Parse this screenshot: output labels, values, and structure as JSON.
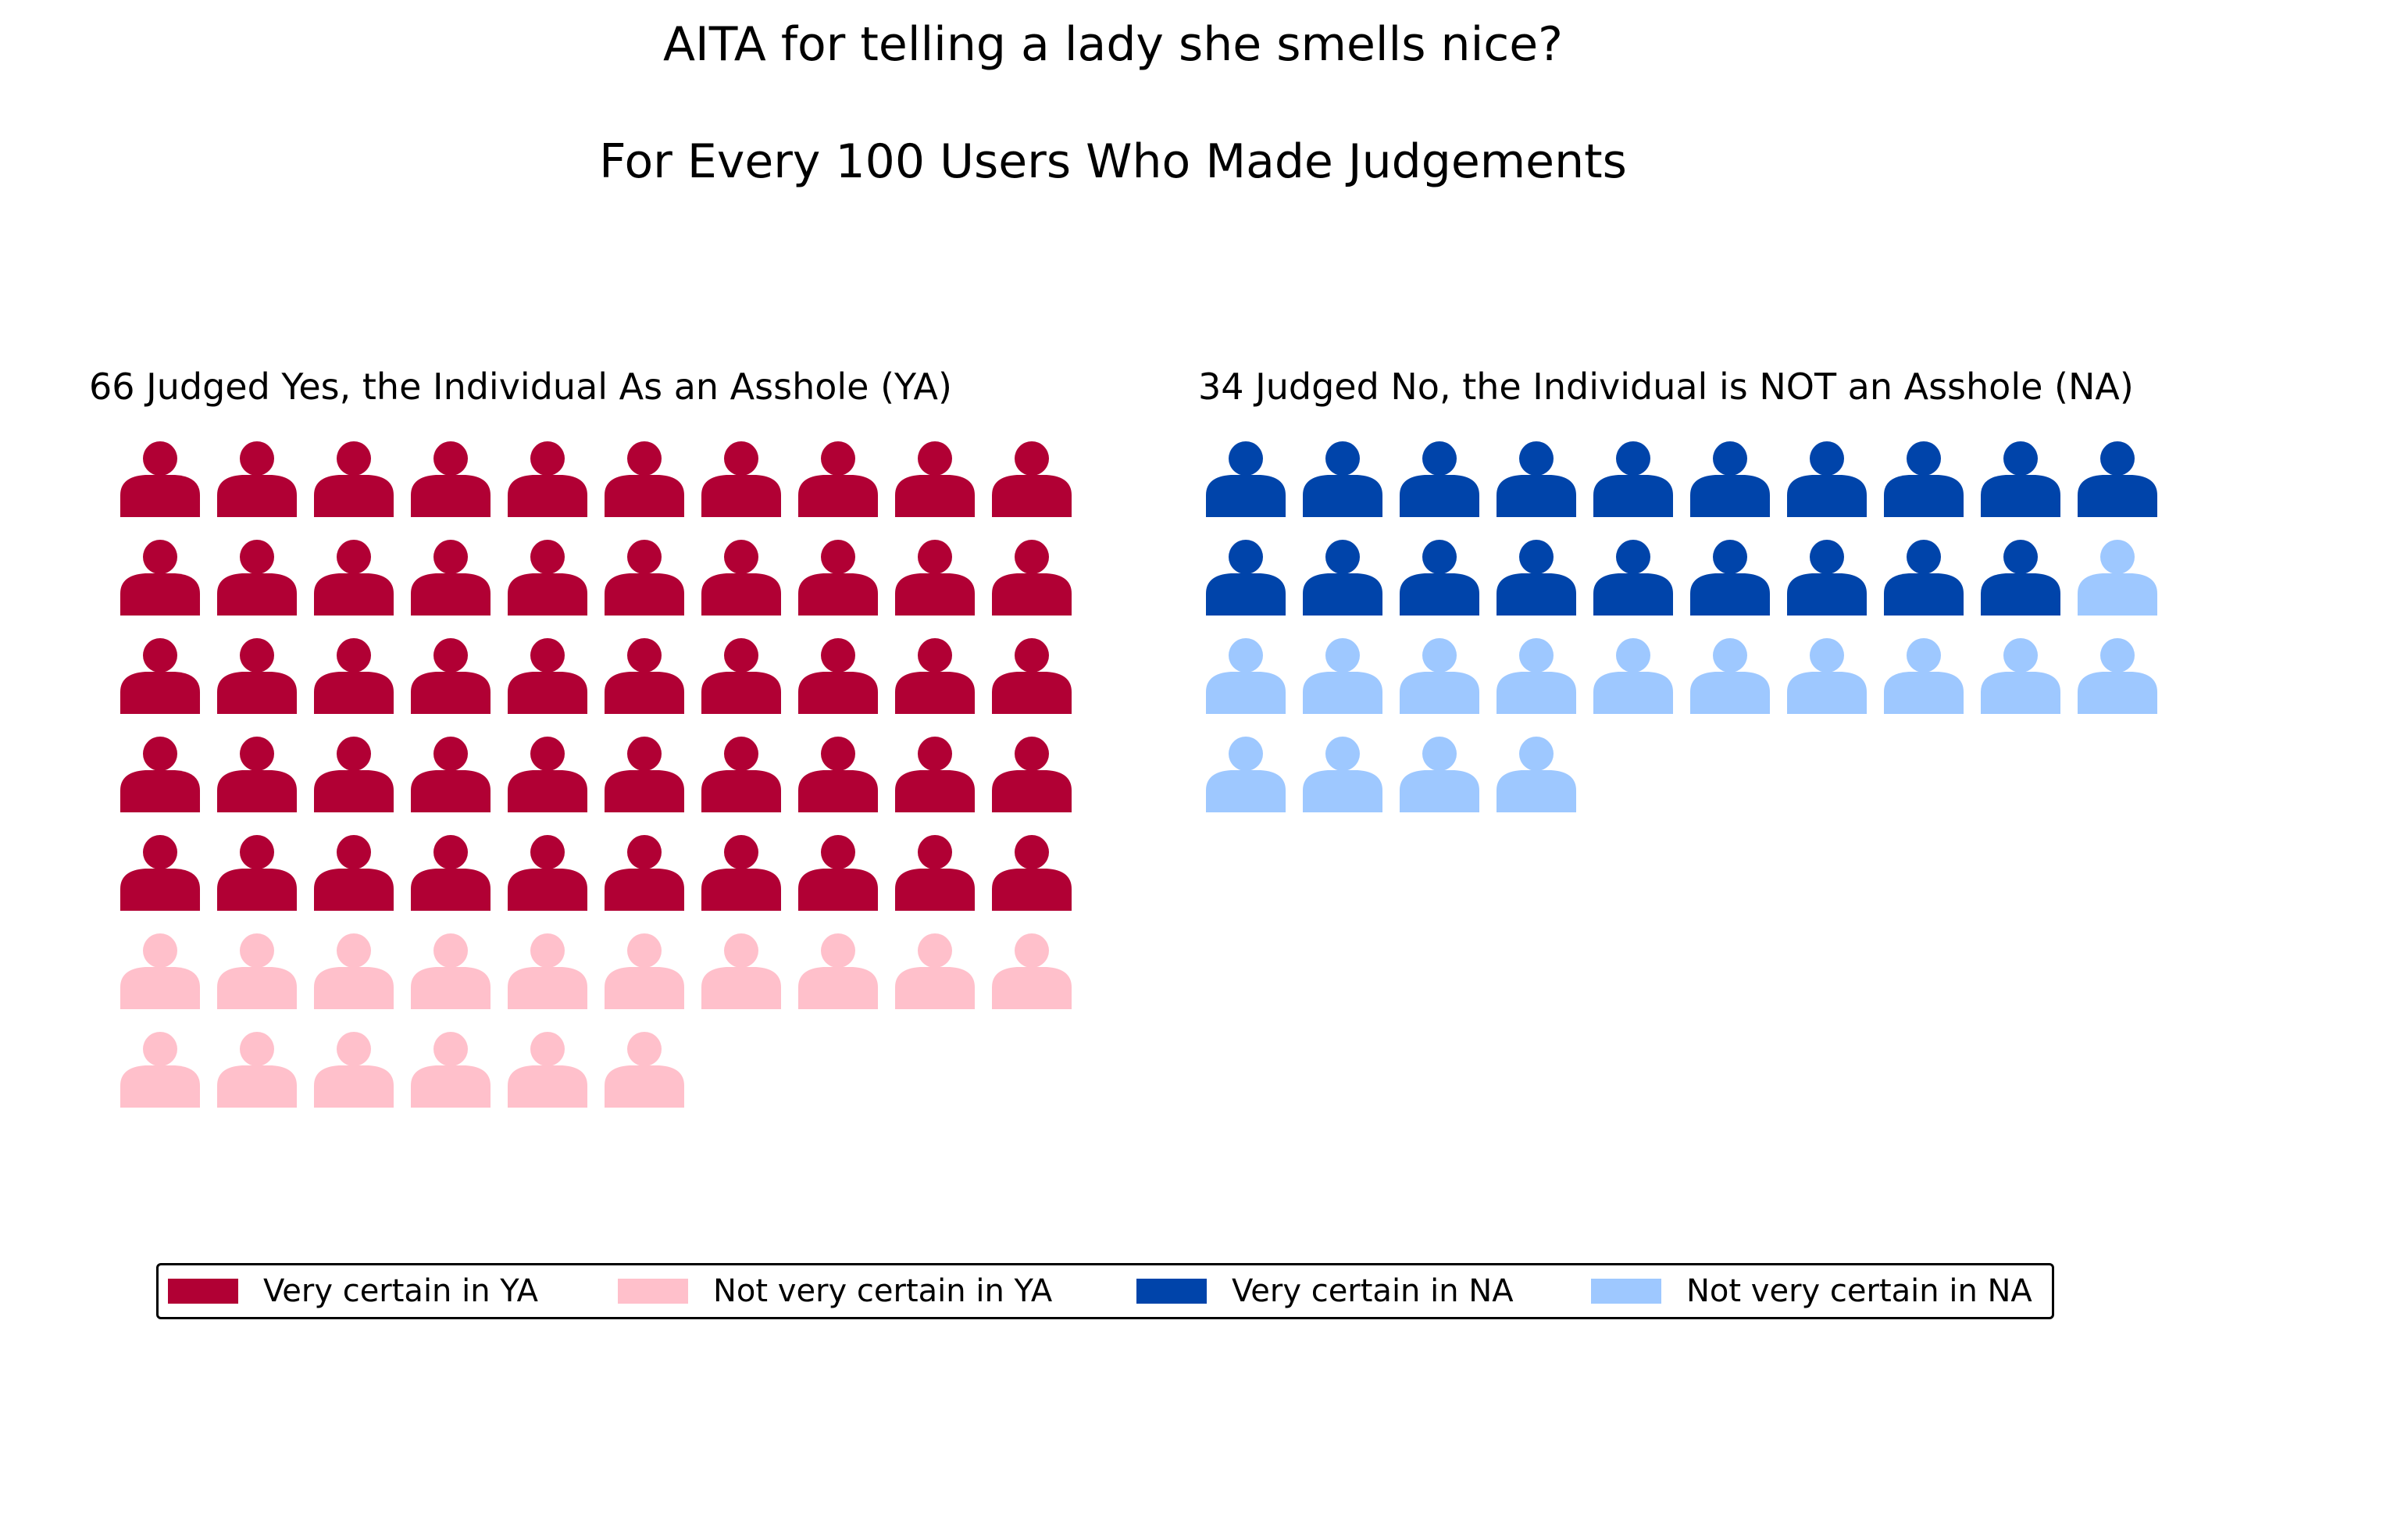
{
  "chart_data": {
    "type": "pictograph",
    "title": "AITA for telling a lady she smells nice?",
    "subtitle": "For Every 100 Users Who Made Judgements",
    "groups": [
      {
        "key": "ya",
        "title": "66 Judged Yes, the Individual As an Asshole (YA)",
        "total": 66,
        "segments": [
          {
            "name": "Very certain in YA",
            "count": 50,
            "color": "#b10034"
          },
          {
            "name": "Not very certain in YA",
            "count": 16,
            "color": "#ffc0cb"
          }
        ]
      },
      {
        "key": "na",
        "title": "34 Judged No, the Individual is NOT an Asshole (NA)",
        "total": 34,
        "segments": [
          {
            "name": "Very certain in NA",
            "count": 19,
            "color": "#0044aa"
          },
          {
            "name": "Not very certain in NA",
            "count": 15,
            "color": "#9ec8ff"
          }
        ]
      }
    ],
    "icon": "person-icon",
    "legend": {
      "position": "bottom",
      "entries": [
        {
          "label": "Very certain in YA",
          "color": "#b10034"
        },
        {
          "label": "Not very certain in YA",
          "color": "#ffc0cb"
        },
        {
          "label": "Very certain in NA",
          "color": "#0044aa"
        },
        {
          "label": "Not very certain in NA",
          "color": "#9ec8ff"
        }
      ]
    }
  }
}
